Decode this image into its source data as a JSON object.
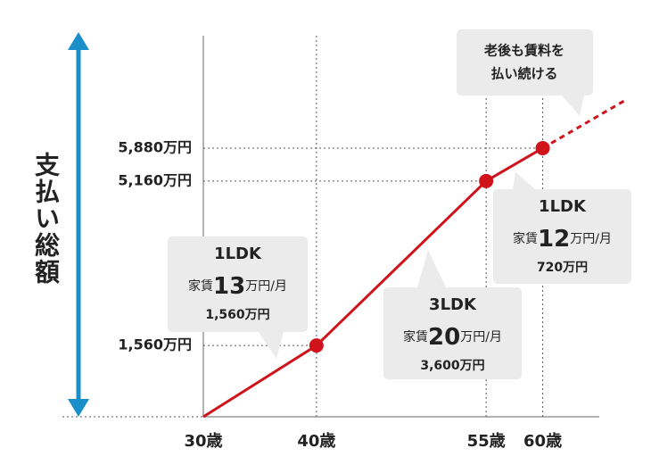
{
  "chart_data": {
    "type": "line",
    "y_label": "支払い総額",
    "x": [
      30,
      40,
      55,
      60
    ],
    "values": [
      0,
      1560,
      5160,
      5880
    ],
    "color": "#d0121b",
    "xlim": [
      30,
      65
    ],
    "xticks": [
      {
        "value": 30,
        "label": "30歳"
      },
      {
        "value": 40,
        "label": "40歳"
      },
      {
        "value": 55,
        "label": "55歳"
      },
      {
        "value": 60,
        "label": "60歳"
      }
    ],
    "ylim": [
      0,
      8340
    ],
    "yticks": [
      {
        "value": 1560,
        "label": "1,560万円"
      },
      {
        "value": 5160,
        "label": "5,160万円"
      },
      {
        "value": 5880,
        "label": "5,880万円"
      }
    ],
    "annotations": [
      {
        "title": "1LDK",
        "rent_prefix": "家賃",
        "rent": "13",
        "rent_suffix": "万円/月",
        "total": "1,560万円"
      },
      {
        "title": "3LDK",
        "rent_prefix": "家賃",
        "rent": "20",
        "rent_suffix": "万円/月",
        "total": "3,600万円"
      },
      {
        "title": "1LDK",
        "rent_prefix": "家賃",
        "rent": "12",
        "rent_suffix": "万円/月",
        "total": "720万円"
      }
    ],
    "note": {
      "lines": [
        "老後も賃料を",
        "払い続ける"
      ]
    }
  }
}
